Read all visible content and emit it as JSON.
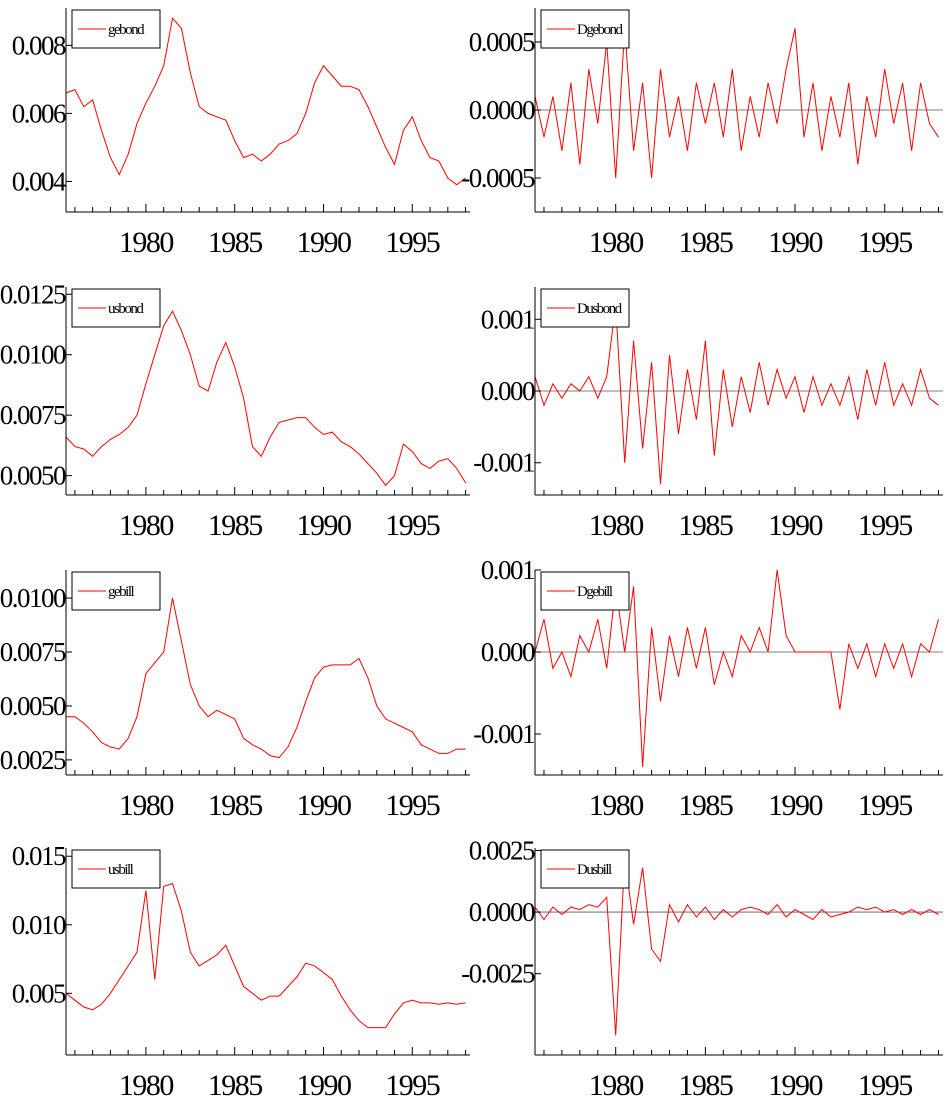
{
  "series_color": "#ff0000",
  "chart_data": [
    {
      "type": "line",
      "series": [
        {
          "name": "gebond",
          "x": [
            1975.5,
            1976.0,
            1976.5,
            1977.0,
            1977.5,
            1978.0,
            1978.5,
            1979.0,
            1979.5,
            1980.0,
            1980.5,
            1981.0,
            1981.5,
            1982.0,
            1982.5,
            1983.0,
            1983.5,
            1984.0,
            1984.5,
            1985.0,
            1985.5,
            1986.0,
            1986.5,
            1987.0,
            1987.5,
            1988.0,
            1988.5,
            1989.0,
            1989.5,
            1990.0,
            1990.5,
            1991.0,
            1991.5,
            1992.0,
            1992.5,
            1993.0,
            1993.5,
            1994.0,
            1994.5,
            1995.0,
            1995.5,
            1996.0,
            1996.5,
            1997.0,
            1997.5,
            1998.0
          ],
          "values": [
            0.0066,
            0.0067,
            0.0062,
            0.0064,
            0.0055,
            0.0047,
            0.0042,
            0.0048,
            0.0057,
            0.0063,
            0.0068,
            0.0074,
            0.0088,
            0.0085,
            0.0072,
            0.0062,
            0.006,
            0.0059,
            0.0058,
            0.0052,
            0.0047,
            0.0048,
            0.0046,
            0.0048,
            0.0051,
            0.0052,
            0.0054,
            0.006,
            0.0069,
            0.0074,
            0.0071,
            0.0068,
            0.0068,
            0.0067,
            0.0062,
            0.0056,
            0.005,
            0.0045,
            0.0055,
            0.0059,
            0.0052,
            0.0047,
            0.0046,
            0.0041,
            0.0039,
            0.0041
          ]
        }
      ],
      "yticks": [
        0.004,
        0.006,
        0.008
      ],
      "yticks_labels": [
        "0.004",
        "0.006",
        "0.008"
      ],
      "ylim": [
        0.0031,
        0.0091
      ],
      "xlim": [
        1975.5,
        1998.25
      ],
      "xticks": [
        1980,
        1985,
        1990,
        1995
      ],
      "zero_line": false
    },
    {
      "type": "line",
      "series": [
        {
          "name": "Dgebond",
          "x": [
            1975.5,
            1976.0,
            1976.5,
            1977.0,
            1977.5,
            1978.0,
            1978.5,
            1979.0,
            1979.5,
            1980.0,
            1980.5,
            1981.0,
            1981.5,
            1982.0,
            1982.5,
            1983.0,
            1983.5,
            1984.0,
            1984.5,
            1985.0,
            1985.5,
            1986.0,
            1986.5,
            1987.0,
            1987.5,
            1988.0,
            1988.5,
            1989.0,
            1989.5,
            1990.0,
            1990.5,
            1991.0,
            1991.5,
            1992.0,
            1992.5,
            1993.0,
            1993.5,
            1994.0,
            1994.5,
            1995.0,
            1995.5,
            1996.0,
            1996.5,
            1997.0,
            1997.5,
            1998.0
          ],
          "values": [
            0.0001,
            -0.0002,
            0.0001,
            -0.0003,
            0.0002,
            -0.0004,
            0.0003,
            -0.0001,
            0.0005,
            -0.0005,
            0.0006,
            -0.0003,
            0.0002,
            -0.0005,
            0.0003,
            -0.0002,
            0.0001,
            -0.0003,
            0.0002,
            -0.0001,
            0.0002,
            -0.0002,
            0.0003,
            -0.0003,
            0.0001,
            -0.0002,
            0.0002,
            -0.0001,
            0.0003,
            0.0006,
            -0.0002,
            0.0002,
            -0.0003,
            0.0001,
            -0.0002,
            0.0002,
            -0.0004,
            0.0001,
            -0.0002,
            0.0003,
            -0.0001,
            0.0002,
            -0.0003,
            0.0002,
            -0.0001,
            -0.0002
          ]
        }
      ],
      "yticks": [
        -0.0005,
        0.0,
        0.0005
      ],
      "yticks_labels": [
        "-0.0005",
        "0.0000",
        "0.0005"
      ],
      "ylim": [
        -0.00075,
        0.00075
      ],
      "xlim": [
        1975.5,
        1998.25
      ],
      "xticks": [
        1980,
        1985,
        1990,
        1995
      ],
      "zero_line": true
    },
    {
      "type": "line",
      "series": [
        {
          "name": "usbond",
          "x": [
            1975.5,
            1976.0,
            1976.5,
            1977.0,
            1977.5,
            1978.0,
            1978.5,
            1979.0,
            1979.5,
            1980.0,
            1980.5,
            1981.0,
            1981.5,
            1982.0,
            1982.5,
            1983.0,
            1983.5,
            1984.0,
            1984.5,
            1985.0,
            1985.5,
            1986.0,
            1986.5,
            1987.0,
            1987.5,
            1988.0,
            1988.5,
            1989.0,
            1989.5,
            1990.0,
            1990.5,
            1991.0,
            1991.5,
            1992.0,
            1992.5,
            1993.0,
            1993.5,
            1994.0,
            1994.5,
            1995.0,
            1995.5,
            1996.0,
            1996.5,
            1997.0,
            1997.5,
            1998.0
          ],
          "values": [
            0.0066,
            0.0062,
            0.0061,
            0.0058,
            0.0062,
            0.0065,
            0.0067,
            0.007,
            0.0075,
            0.0088,
            0.01,
            0.0112,
            0.0118,
            0.011,
            0.01,
            0.0087,
            0.0085,
            0.0097,
            0.0105,
            0.0095,
            0.0082,
            0.0062,
            0.0058,
            0.0066,
            0.0072,
            0.0073,
            0.0074,
            0.0074,
            0.007,
            0.0067,
            0.0068,
            0.0064,
            0.0062,
            0.0059,
            0.0055,
            0.0051,
            0.0046,
            0.005,
            0.0063,
            0.006,
            0.0055,
            0.0053,
            0.0056,
            0.0057,
            0.0053,
            0.0047
          ]
        }
      ],
      "yticks": [
        0.005,
        0.0075,
        0.01,
        0.0125
      ],
      "yticks_labels": [
        "0.0050",
        "0.0075",
        "0.0100",
        "0.0125"
      ],
      "ylim": [
        0.0042,
        0.0128
      ],
      "xlim": [
        1975.5,
        1998.25
      ],
      "xticks": [
        1980,
        1985,
        1990,
        1995
      ],
      "zero_line": false
    },
    {
      "type": "line",
      "series": [
        {
          "name": "Dusbond",
          "x": [
            1975.5,
            1976.0,
            1976.5,
            1977.0,
            1977.5,
            1978.0,
            1978.5,
            1979.0,
            1979.5,
            1980.0,
            1980.5,
            1981.0,
            1981.5,
            1982.0,
            1982.5,
            1983.0,
            1983.5,
            1984.0,
            1984.5,
            1985.0,
            1985.5,
            1986.0,
            1986.5,
            1987.0,
            1987.5,
            1988.0,
            1988.5,
            1989.0,
            1989.5,
            1990.0,
            1990.5,
            1991.0,
            1991.5,
            1992.0,
            1992.5,
            1993.0,
            1993.5,
            1994.0,
            1994.5,
            1995.0,
            1995.5,
            1996.0,
            1996.5,
            1997.0,
            1997.5,
            1998.0
          ],
          "values": [
            0.0002,
            -0.0002,
            0.0001,
            -0.0001,
            0.0001,
            0.0,
            0.0002,
            -0.0001,
            0.0002,
            0.0012,
            -0.001,
            0.0007,
            -0.0008,
            0.0004,
            -0.0013,
            0.0005,
            -0.0006,
            0.0003,
            -0.0004,
            0.0007,
            -0.0009,
            0.0003,
            -0.0005,
            0.0002,
            -0.0003,
            0.0004,
            -0.0002,
            0.0003,
            -0.0001,
            0.0002,
            -0.0003,
            0.0002,
            -0.0002,
            0.0001,
            -0.0002,
            0.0002,
            -0.0004,
            0.0003,
            -0.0002,
            0.0004,
            -0.0002,
            0.0001,
            -0.0002,
            0.0003,
            -0.0001,
            -0.0002
          ]
        }
      ],
      "yticks": [
        -0.001,
        0.0,
        0.001
      ],
      "yticks_labels": [
        "-0.001",
        "0.000",
        "0.001"
      ],
      "ylim": [
        -0.00145,
        0.00145
      ],
      "xlim": [
        1975.5,
        1998.25
      ],
      "xticks": [
        1980,
        1985,
        1990,
        1995
      ],
      "zero_line": true
    },
    {
      "type": "line",
      "series": [
        {
          "name": "gebill",
          "x": [
            1975.5,
            1976.0,
            1976.5,
            1977.0,
            1977.5,
            1978.0,
            1978.5,
            1979.0,
            1979.5,
            1980.0,
            1980.5,
            1981.0,
            1981.5,
            1982.0,
            1982.5,
            1983.0,
            1983.5,
            1984.0,
            1984.5,
            1985.0,
            1985.5,
            1986.0,
            1986.5,
            1987.0,
            1987.5,
            1988.0,
            1988.5,
            1989.0,
            1989.5,
            1990.0,
            1990.5,
            1991.0,
            1991.5,
            1992.0,
            1992.5,
            1993.0,
            1993.5,
            1994.0,
            1994.5,
            1995.0,
            1995.5,
            1996.0,
            1996.5,
            1997.0,
            1997.5,
            1998.0
          ],
          "values": [
            0.0045,
            0.0045,
            0.0042,
            0.0038,
            0.0033,
            0.0031,
            0.003,
            0.0035,
            0.0045,
            0.0065,
            0.007,
            0.0075,
            0.01,
            0.008,
            0.006,
            0.005,
            0.0045,
            0.0048,
            0.0046,
            0.0044,
            0.0035,
            0.0032,
            0.003,
            0.0027,
            0.0026,
            0.0031,
            0.004,
            0.0052,
            0.0063,
            0.0068,
            0.0069,
            0.0069,
            0.0069,
            0.0072,
            0.0063,
            0.005,
            0.0044,
            0.0042,
            0.004,
            0.0038,
            0.0032,
            0.003,
            0.0028,
            0.0028,
            0.003,
            0.003
          ]
        }
      ],
      "yticks": [
        0.0025,
        0.005,
        0.0075,
        0.01
      ],
      "yticks_labels": [
        "0.0025",
        "0.0050",
        "0.0075",
        "0.0100"
      ],
      "ylim": [
        0.0018,
        0.0113
      ],
      "xlim": [
        1975.5,
        1998.25
      ],
      "xticks": [
        1980,
        1985,
        1990,
        1995
      ],
      "zero_line": false
    },
    {
      "type": "line",
      "series": [
        {
          "name": "Dgebill",
          "x": [
            1975.5,
            1976.0,
            1976.5,
            1977.0,
            1977.5,
            1978.0,
            1978.5,
            1979.0,
            1979.5,
            1980.0,
            1980.5,
            1981.0,
            1981.5,
            1982.0,
            1982.5,
            1983.0,
            1983.5,
            1984.0,
            1984.5,
            1985.0,
            1985.5,
            1986.0,
            1986.5,
            1987.0,
            1987.5,
            1988.0,
            1988.5,
            1989.0,
            1989.5,
            1990.0,
            1990.5,
            1991.0,
            1991.5,
            1992.0,
            1992.5,
            1993.0,
            1993.5,
            1994.0,
            1994.5,
            1995.0,
            1995.5,
            1996.0,
            1996.5,
            1997.0,
            1997.5,
            1998.0
          ],
          "values": [
            0.0,
            0.0004,
            -0.0002,
            0.0,
            -0.0003,
            0.0002,
            0.0,
            0.0004,
            -0.0002,
            0.0008,
            0.0,
            0.0008,
            -0.0014,
            0.0003,
            -0.0006,
            0.0002,
            -0.0003,
            0.0003,
            -0.0002,
            0.0003,
            -0.0004,
            0.0,
            -0.0003,
            0.0002,
            0.0,
            0.0003,
            0.0,
            0.001,
            0.0002,
            0.0,
            0.0,
            0.0,
            0.0,
            0.0,
            -0.0007,
            0.0001,
            -0.0002,
            0.0001,
            -0.0003,
            0.0001,
            -0.0002,
            0.0001,
            -0.0003,
            0.0001,
            0.0,
            0.0004
          ]
        }
      ],
      "yticks": [
        -0.001,
        0.0,
        0.001
      ],
      "yticks_labels": [
        "-0.001",
        "0.000",
        "0.001"
      ],
      "ylim": [
        -0.0015,
        0.001
      ],
      "xlim": [
        1975.5,
        1998.25
      ],
      "xticks": [
        1980,
        1985,
        1990,
        1995
      ],
      "zero_line": true
    },
    {
      "type": "line",
      "series": [
        {
          "name": "usbill",
          "x": [
            1975.5,
            1976.0,
            1976.5,
            1977.0,
            1977.5,
            1978.0,
            1978.5,
            1979.0,
            1979.5,
            1980.0,
            1980.5,
            1981.0,
            1981.5,
            1982.0,
            1982.5,
            1983.0,
            1983.5,
            1984.0,
            1984.5,
            1985.0,
            1985.5,
            1986.0,
            1986.5,
            1987.0,
            1987.5,
            1988.0,
            1988.5,
            1989.0,
            1989.5,
            1990.0,
            1990.5,
            1991.0,
            1991.5,
            1992.0,
            1992.5,
            1993.0,
            1993.5,
            1994.0,
            1994.5,
            1995.0,
            1995.5,
            1996.0,
            1996.5,
            1997.0,
            1997.5,
            1998.0
          ],
          "values": [
            0.005,
            0.0045,
            0.004,
            0.0038,
            0.0042,
            0.005,
            0.006,
            0.007,
            0.008,
            0.0125,
            0.006,
            0.0128,
            0.013,
            0.011,
            0.008,
            0.007,
            0.0074,
            0.0078,
            0.0085,
            0.007,
            0.0055,
            0.005,
            0.0045,
            0.0048,
            0.0048,
            0.0055,
            0.0062,
            0.0072,
            0.007,
            0.0065,
            0.006,
            0.0048,
            0.0038,
            0.003,
            0.0025,
            0.0025,
            0.0025,
            0.0035,
            0.0043,
            0.0045,
            0.0043,
            0.0043,
            0.0042,
            0.0043,
            0.0042,
            0.0043
          ]
        }
      ],
      "yticks": [
        0.005,
        0.01,
        0.015
      ],
      "yticks_labels": [
        "0.005",
        "0.010",
        "0.015"
      ],
      "ylim": [
        0.0005,
        0.0156
      ],
      "xlim": [
        1975.5,
        1998.25
      ],
      "xticks": [
        1980,
        1985,
        1990,
        1995
      ],
      "zero_line": false
    },
    {
      "type": "line",
      "series": [
        {
          "name": "Dusbill",
          "x": [
            1975.5,
            1976.0,
            1976.5,
            1977.0,
            1977.5,
            1978.0,
            1978.5,
            1979.0,
            1979.5,
            1980.0,
            1980.5,
            1981.0,
            1981.5,
            1982.0,
            1982.5,
            1983.0,
            1983.5,
            1984.0,
            1984.5,
            1985.0,
            1985.5,
            1986.0,
            1986.5,
            1987.0,
            1987.5,
            1988.0,
            1988.5,
            1989.0,
            1989.5,
            1990.0,
            1990.5,
            1991.0,
            1991.5,
            1992.0,
            1992.5,
            1993.0,
            1993.5,
            1994.0,
            1994.5,
            1995.0,
            1995.5,
            1996.0,
            1996.5,
            1997.0,
            1997.5,
            1998.0
          ],
          "values": [
            0.0002,
            -0.0003,
            0.0002,
            -0.0001,
            0.0002,
            0.0001,
            0.0003,
            0.0002,
            0.0006,
            -0.005,
            0.0022,
            -0.0005,
            0.0018,
            -0.0015,
            -0.002,
            0.0003,
            -0.0004,
            0.0003,
            -0.0002,
            0.0002,
            -0.0003,
            0.0001,
            -0.0002,
            0.0001,
            0.0002,
            0.0001,
            -0.0001,
            0.0003,
            -0.0002,
            0.0001,
            -0.0001,
            -0.0003,
            0.0001,
            -0.0002,
            -0.0001,
            0.0,
            0.0002,
            0.0001,
            0.0002,
            0.0,
            0.0001,
            -0.0001,
            0.0001,
            -0.0001,
            0.0001,
            -0.0001
          ]
        }
      ],
      "yticks": [
        -0.0025,
        0.0,
        0.0025
      ],
      "yticks_labels": [
        "-0.0025",
        "0.0000",
        "0.0025"
      ],
      "ylim": [
        -0.0058,
        0.0026
      ],
      "xlim": [
        1975.5,
        1998.25
      ],
      "xticks": [
        1980,
        1985,
        1990,
        1995
      ],
      "zero_line": true
    }
  ]
}
